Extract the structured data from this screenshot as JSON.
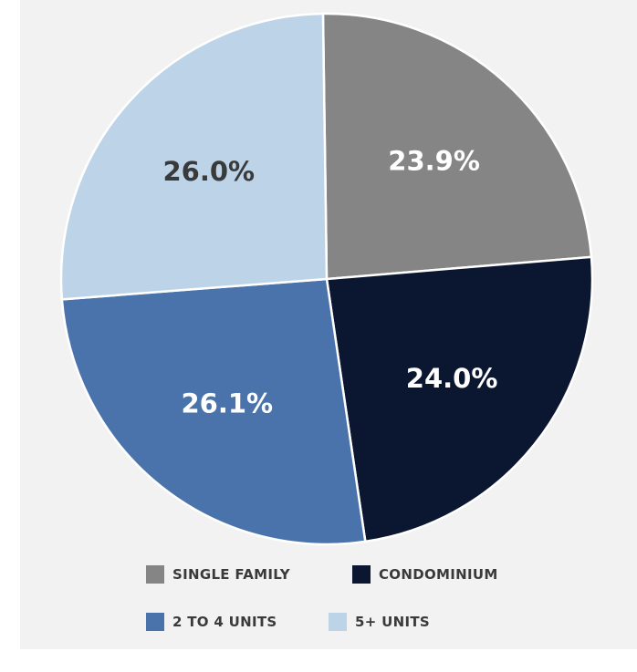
{
  "chart_data": {
    "type": "pie",
    "title": "",
    "slices": [
      {
        "label": "SINGLE FAMILY",
        "value": 23.9,
        "value_label": "23.9%",
        "color": "#858585",
        "label_color": "#ffffff"
      },
      {
        "label": "CONDOMINIUM",
        "value": 24.0,
        "value_label": "24.0%",
        "color": "#0b1730",
        "label_color": "#ffffff"
      },
      {
        "label": "2 TO 4 UNITS",
        "value": 26.1,
        "value_label": "26.1%",
        "color": "#4a73ab",
        "label_color": "#ffffff"
      },
      {
        "label": "5+ UNITS",
        "value": 26.0,
        "value_label": "26.0%",
        "color": "#bdd3e8",
        "label_color": "#3a3a3a"
      }
    ],
    "start_angle": "12 o'clock",
    "direction": "clockwise",
    "legend_position": "bottom",
    "background": "#f2f2f2",
    "slice_border": "#ffffff"
  }
}
